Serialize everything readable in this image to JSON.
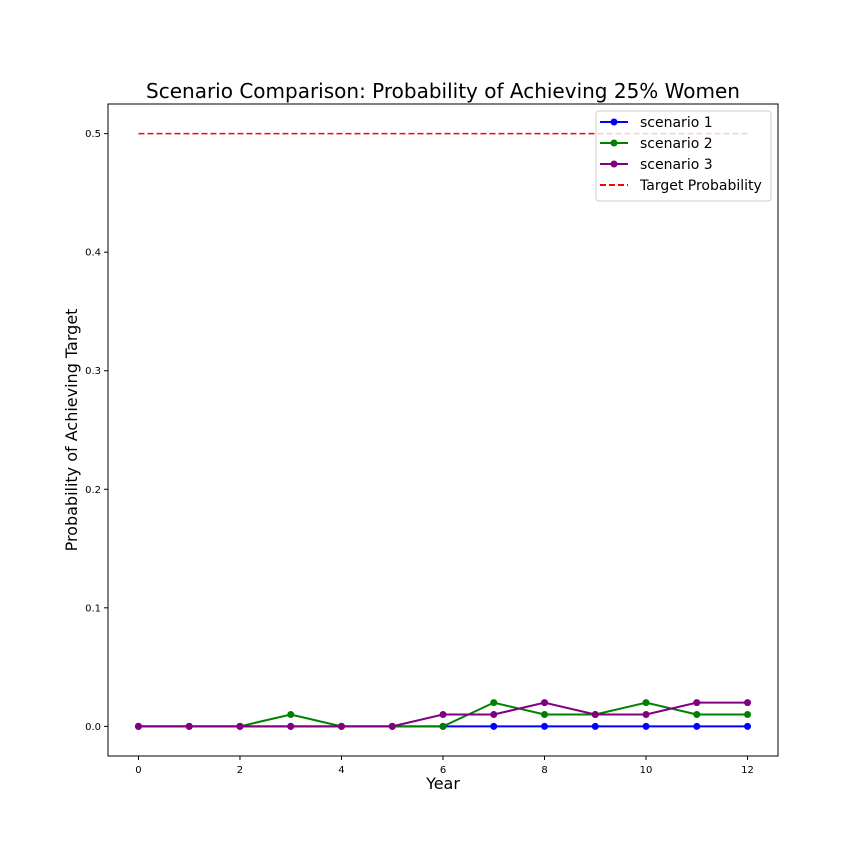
{
  "chart_data": {
    "type": "line",
    "title": "Scenario Comparison: Probability of Achieving 25% Women",
    "xlabel": "Year",
    "ylabel": "Probability of Achieving Target",
    "x": [
      0,
      1,
      2,
      3,
      4,
      5,
      6,
      7,
      8,
      9,
      10,
      11,
      12
    ],
    "xlim": [
      -0.6,
      12.6
    ],
    "ylim": [
      -0.025,
      0.525
    ],
    "xticks": [
      0,
      2,
      4,
      6,
      8,
      10,
      12
    ],
    "yticks": [
      0.0,
      0.1,
      0.2,
      0.3,
      0.4,
      0.5
    ],
    "ytick_labels": [
      "0.0",
      "0.1",
      "0.2",
      "0.3",
      "0.4",
      "0.5"
    ],
    "grid": false,
    "legend_position": "top-right",
    "series": [
      {
        "name": "scenario 1",
        "color": "#0000ff",
        "style": "solid",
        "marker": "circle",
        "values": [
          0,
          0,
          0,
          0,
          0,
          0,
          0,
          0,
          0,
          0,
          0,
          0,
          0
        ]
      },
      {
        "name": "scenario 2",
        "color": "#008000",
        "style": "solid",
        "marker": "circle",
        "values": [
          0,
          0,
          0,
          0.01,
          0,
          0,
          0,
          0.02,
          0.01,
          0.01,
          0.02,
          0.01,
          0.01
        ]
      },
      {
        "name": "scenario 3",
        "color": "#800080",
        "style": "solid",
        "marker": "circle",
        "values": [
          0,
          0,
          0,
          0,
          0,
          0,
          0.01,
          0.01,
          0.02,
          0.01,
          0.01,
          0.02,
          0.02
        ]
      }
    ],
    "reference_lines": [
      {
        "name": "Target Probability",
        "color": "#ff0000",
        "style": "dashed",
        "y": 0.5,
        "x_range": [
          0,
          12
        ]
      }
    ]
  }
}
